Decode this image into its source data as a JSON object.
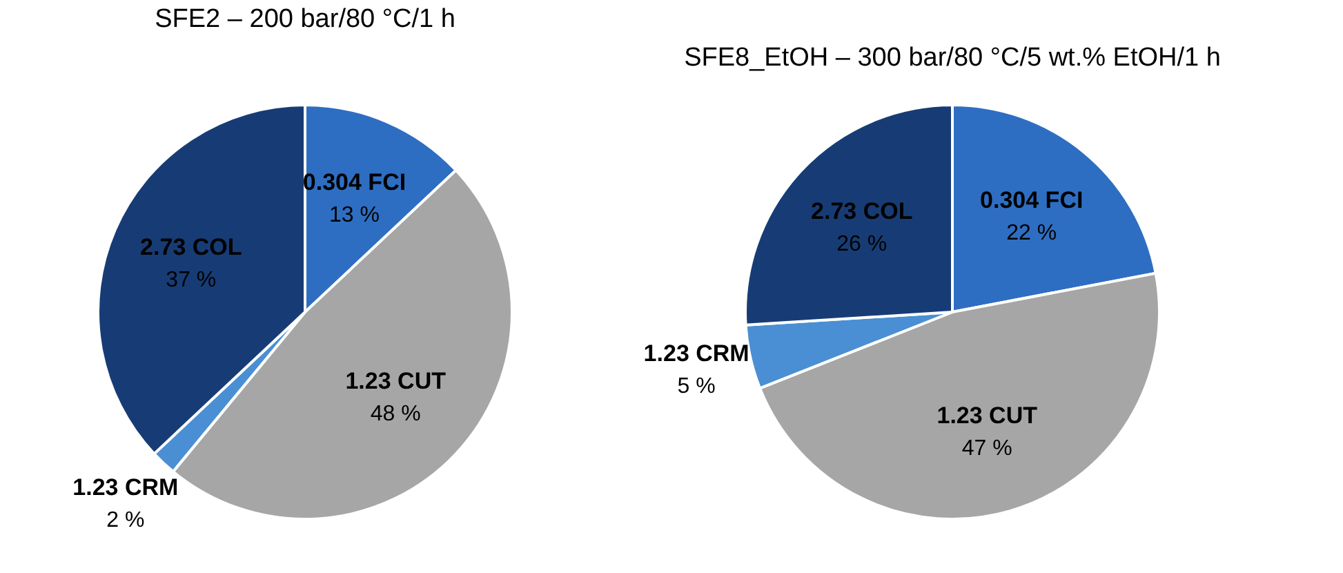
{
  "chart_data": [
    {
      "type": "pie",
      "title": "SFE2 – 200 bar/80 °C/1 h",
      "categories": [
        "0.304 FCI",
        "1.23 CUT",
        "1.23 CRM",
        "2.73 COL"
      ],
      "values": [
        13,
        48,
        2,
        37
      ],
      "value_labels": [
        "13 %",
        "48 %",
        "2 %",
        "37 %"
      ],
      "colors": [
        "#2e6ec2",
        "#a6a6a6",
        "#4a8fd3",
        "#173c75"
      ]
    },
    {
      "type": "pie",
      "title": "SFE8_EtOH – 300 bar/80 °C/5 wt.% EtOH/1 h",
      "categories": [
        "0.304 FCI",
        "1.23 CUT",
        "1.23 CRM",
        "2.73 COL"
      ],
      "values": [
        22,
        47,
        5,
        26
      ],
      "value_labels": [
        "22 %",
        "47 %",
        "5 %",
        "26 %"
      ],
      "colors": [
        "#2e6ec2",
        "#a6a6a6",
        "#4a8fd3",
        "#173c75"
      ]
    }
  ]
}
